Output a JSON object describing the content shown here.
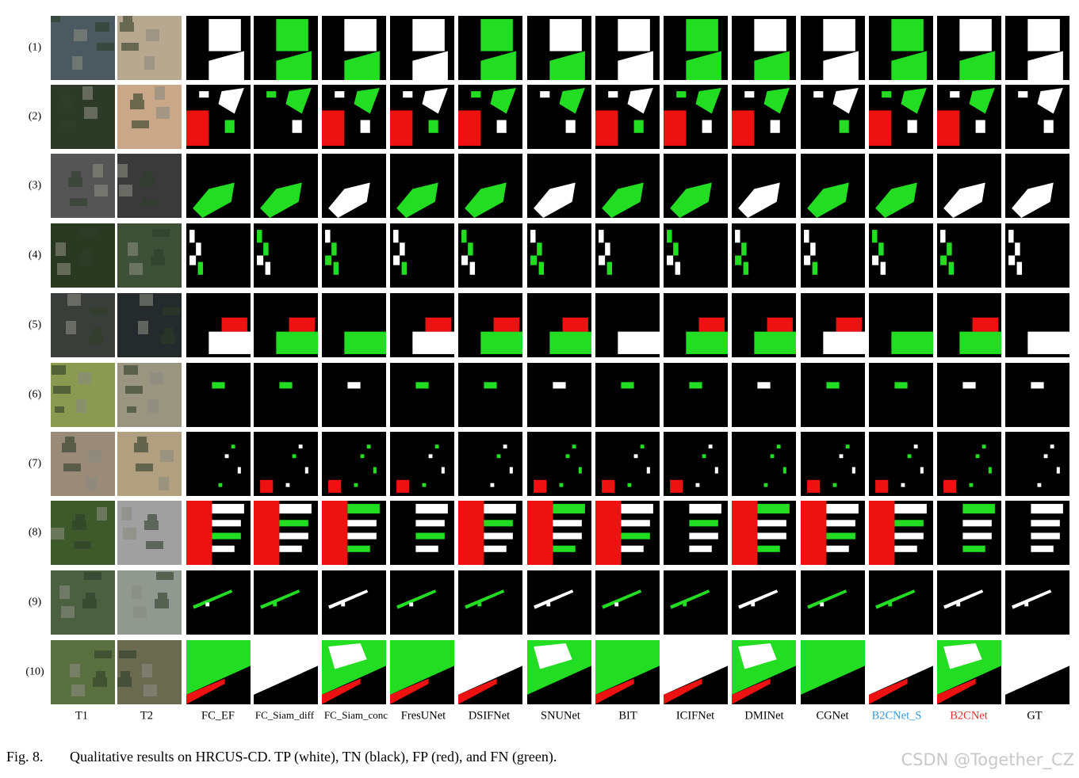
{
  "figure": {
    "row_labels": [
      "(1)",
      "(2)",
      "(3)",
      "(4)",
      "(5)",
      "(6)",
      "(7)",
      "(8)",
      "(9)",
      "(10)"
    ],
    "column_labels": [
      "T1",
      "T2",
      "FC_EF",
      "FC_Siam_diff",
      "FC_Siam_conc",
      "FresUNet",
      "DSIFNet",
      "SNUNet",
      "BIT",
      "ICIFNet",
      "DMINet",
      "CGNet",
      "B2CNet_S",
      "B2CNet",
      "GT"
    ],
    "caption": {
      "label": "Fig. 8.",
      "text": "Qualitative results on HRCUS-CD. TP (white), TN (black), FP (red), and FN (green)."
    }
  },
  "watermark": "CSDN @Together_CZ"
}
